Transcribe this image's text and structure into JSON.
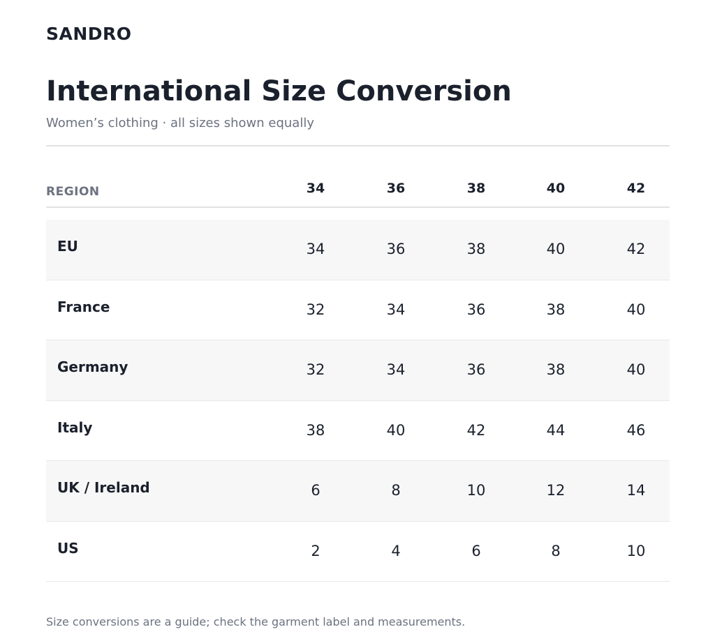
{
  "brand": "SANDRO",
  "title": "International Size Conversion",
  "subtitle": "Women’s clothing · all sizes shown equally",
  "table": {
    "region_header": "REGION",
    "size_headers": [
      "34",
      "36",
      "38",
      "40",
      "42"
    ],
    "rows": [
      {
        "region": "EU",
        "values": [
          "34",
          "36",
          "38",
          "40",
          "42"
        ]
      },
      {
        "region": "France",
        "values": [
          "32",
          "34",
          "36",
          "38",
          "40"
        ]
      },
      {
        "region": "Germany",
        "values": [
          "32",
          "34",
          "36",
          "38",
          "40"
        ]
      },
      {
        "region": "Italy",
        "values": [
          "38",
          "40",
          "42",
          "44",
          "46"
        ]
      },
      {
        "region": "UK / Ireland",
        "values": [
          "6",
          "8",
          "10",
          "12",
          "14"
        ]
      },
      {
        "region": "US",
        "values": [
          "2",
          "4",
          "6",
          "8",
          "10"
        ]
      }
    ]
  },
  "footnote": "Size conversions are a guide; check the garment label and measurements.",
  "colors": {
    "text": "#1a202c",
    "muted": "#6b7280",
    "row_alt": "#f7f7f7",
    "rule": "#e2e2e2"
  }
}
